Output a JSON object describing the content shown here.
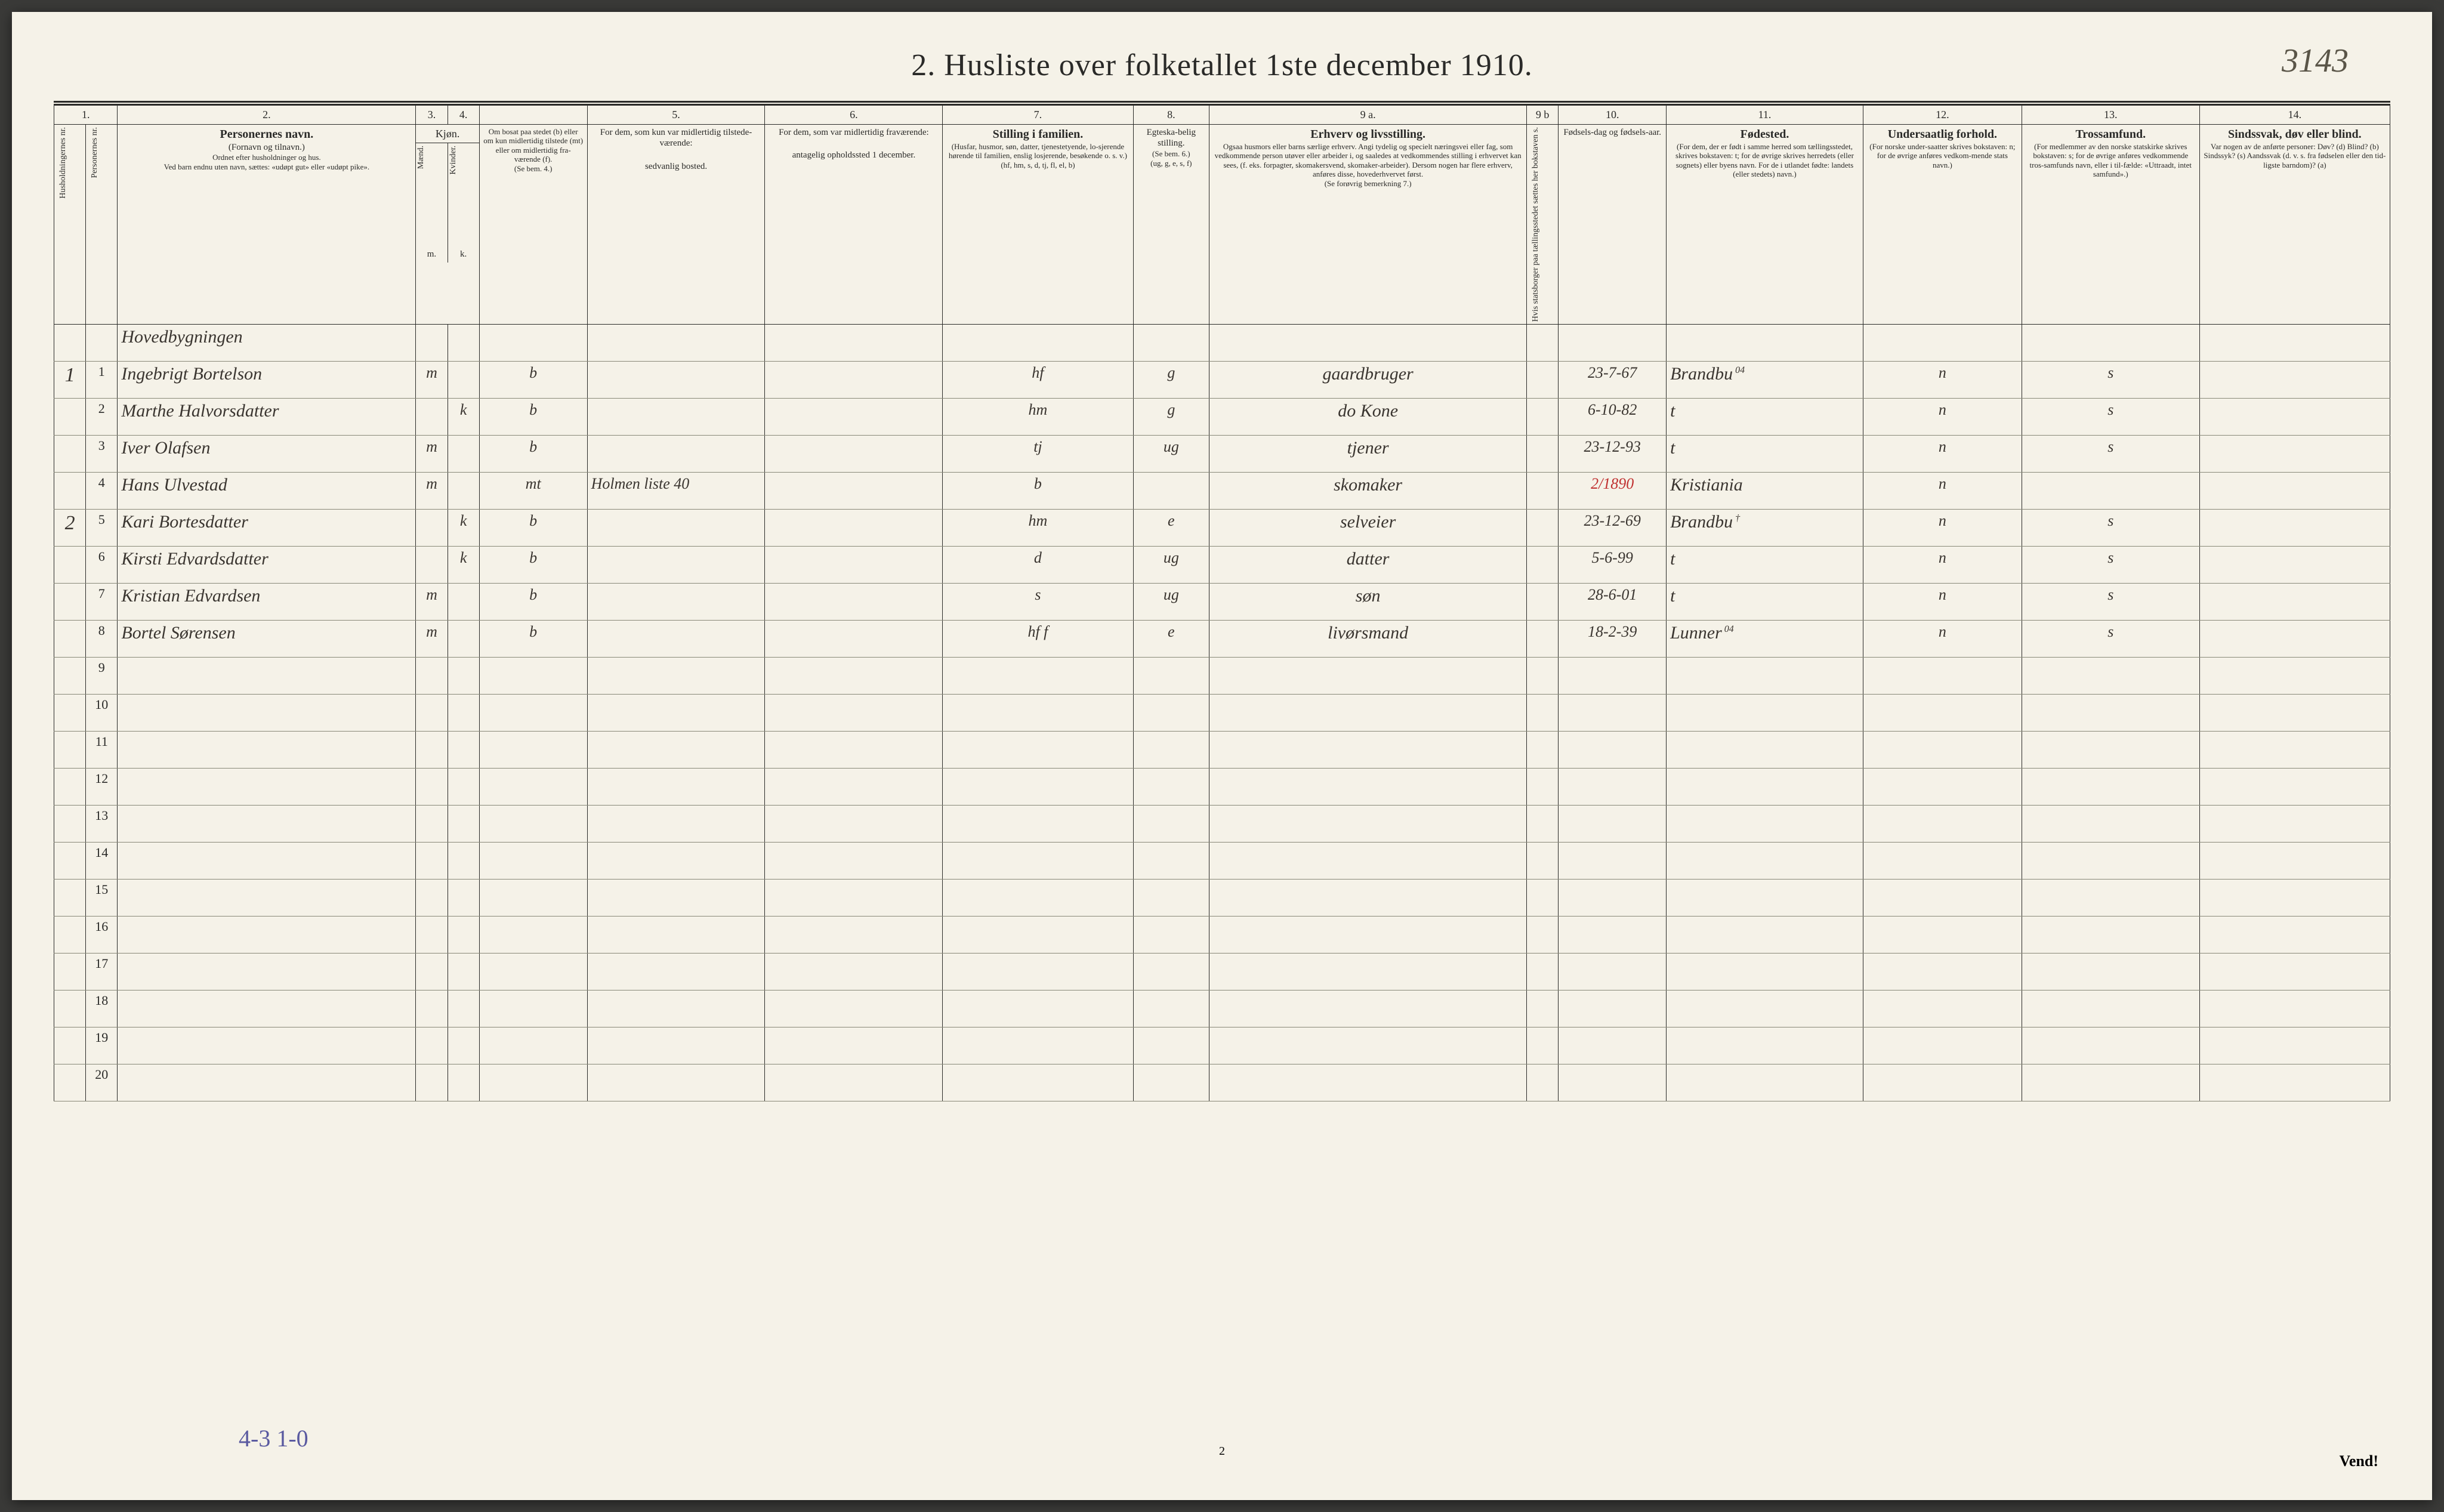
{
  "corner_note": "3143",
  "title": "2.  Husliste over folketallet 1ste december 1910.",
  "col_numbers": [
    "1.",
    "2.",
    "3.",
    "4.",
    "5.",
    "6.",
    "7.",
    "8.",
    "9 a.",
    "9 b",
    "10.",
    "11.",
    "12.",
    "13.",
    "14."
  ],
  "headers": {
    "c1a": "Husholdningernes nr.",
    "c1b": "Personernes nr.",
    "c2_title": "Personernes navn.",
    "c2_sub": "(Fornavn og tilnavn.)",
    "c2_note1": "Ordnet efter husholdninger og hus.",
    "c2_note2": "Ved barn endnu uten navn, sættes: «udøpt gut» eller «udøpt pike».",
    "c34_group": "Kjøn.",
    "c3": "Mænd.",
    "c3_sub": "m.",
    "c4": "Kvinder.",
    "c4_sub": "k.",
    "c4b_title": "Om bosat paa stedet (b) eller om kun midlertidig tilstede (mt) eller om midlertidig fra-værende (f).",
    "c4b_note": "(Se bem. 4.)",
    "c5_title": "For dem, som kun var midlertidig tilstede-værende:",
    "c5_sub": "sedvanlig bosted.",
    "c6_title": "For dem, som var midlertidig fraværende:",
    "c6_sub": "antagelig opholdssted 1 december.",
    "c7_title": "Stilling i familien.",
    "c7_sub": "(Husfar, husmor, søn, datter, tjenestetyende, lo-sjerende hørende til familien, enslig losjerende, besøkende o. s. v.)",
    "c7_note": "(hf, hm, s, d, tj, fl, el, b)",
    "c8_title": "Egteska-belig stilling.",
    "c8_sub": "(Se bem. 6.)",
    "c8_note": "(ug, g, e, s, f)",
    "c9a_title": "Erhverv og livsstilling.",
    "c9a_sub": "Ogsaa husmors eller barns særlige erhverv. Angi tydelig og specielt næringsvei eller fag, som vedkommende person utøver eller arbeider i, og saaledes at vedkommendes stilling i erhvervet kan sees, (f. eks. forpagter, skomakersvend, skomaker-arbeider). Dersom nogen har flere erhverv, anføres disse, hovederhvervet først.",
    "c9a_note": "(Se forøvrig bemerkning 7.)",
    "c9b": "Hvis statsborger paa tællingsstedet sættes her bokstaven s.",
    "c10_title": "Fødsels-dag og fødsels-aar.",
    "c11_title": "Fødested.",
    "c11_sub": "(For dem, der er født i samme herred som tællingsstedet, skrives bokstaven: t; for de øvrige skrives herredets (eller sognets) eller byens navn. For de i utlandet fødte: landets (eller stedets) navn.)",
    "c12_title": "Undersaatlig forhold.",
    "c12_sub": "(For norske under-saatter skrives bokstaven: n; for de øvrige anføres vedkom-mende stats navn.)",
    "c13_title": "Trossamfund.",
    "c13_sub": "(For medlemmer av den norske statskirke skrives bokstaven: s; for de øvrige anføres vedkommende tros-samfunds navn, eller i til-fælde: «Uttraadt, intet samfund».)",
    "c14_title": "Sindssvak, døv eller blind.",
    "c14_sub": "Var nogen av de anførte personer: Døv? (d) Blind? (b) Sindssyk? (s) Aandssvak (d. v. s. fra fødselen eller den tid-ligste barndom)? (a)"
  },
  "section_label": "Hovedbygningen",
  "rows": [
    {
      "hh": "1",
      "pn": "1",
      "name": "Ingebrigt Bortelson",
      "sex": "m",
      "res": "b",
      "c5": "",
      "c6": "",
      "fam": "hf",
      "mar": "g",
      "occ": "gaardbruger",
      "dob": "23-7-67",
      "birthplace": "Brandbu",
      "nat": "n",
      "rel": "s",
      "c14": "",
      "bp_sup": "04"
    },
    {
      "hh": "",
      "pn": "2",
      "name": "Marthe Halvorsdatter",
      "sex": "k",
      "res": "b",
      "c5": "",
      "c6": "",
      "fam": "hm",
      "mar": "g",
      "occ": "do Kone",
      "dob": "6-10-82",
      "birthplace": "t",
      "nat": "n",
      "rel": "s",
      "c14": ""
    },
    {
      "hh": "",
      "pn": "3",
      "name": "Iver Olafsen",
      "sex": "m",
      "res": "b",
      "c5": "",
      "c6": "",
      "fam": "tj",
      "mar": "ug",
      "occ": "tjener",
      "dob": "23-12-93",
      "birthplace": "t",
      "nat": "n",
      "rel": "s",
      "c14": ""
    },
    {
      "hh": "",
      "pn": "4",
      "name": "Hans Ulvestad",
      "sex": "m",
      "res": "mt",
      "c5": "Holmen  liste 40",
      "c6": "",
      "fam": "b",
      "mar": "",
      "occ": "skomaker",
      "dob": "2/1890",
      "birthplace": "Kristiania",
      "nat": "n",
      "rel": "",
      "c14": "",
      "red_dob": true
    },
    {
      "hh": "2",
      "pn": "5",
      "name": "Kari Bortesdatter",
      "sex": "k",
      "res": "b",
      "c5": "",
      "c6": "",
      "fam": "hm",
      "mar": "e",
      "occ": "selveier",
      "dob": "23-12-69",
      "birthplace": "Brandbu",
      "nat": "n",
      "rel": "s",
      "c14": "",
      "bp_sup": "†"
    },
    {
      "hh": "",
      "pn": "6",
      "name": "Kirsti Edvardsdatter",
      "sex": "k",
      "res": "b",
      "c5": "",
      "c6": "",
      "fam": "d",
      "mar": "ug",
      "occ": "datter",
      "dob": "5-6-99",
      "birthplace": "t",
      "nat": "n",
      "rel": "s",
      "c14": ""
    },
    {
      "hh": "",
      "pn": "7",
      "name": "Kristian Edvardsen",
      "sex": "m",
      "res": "b",
      "c5": "",
      "c6": "",
      "fam": "s",
      "mar": "ug",
      "occ": "søn",
      "dob": "28-6-01",
      "birthplace": "t",
      "nat": "n",
      "rel": "s",
      "c14": ""
    },
    {
      "hh": "",
      "pn": "8",
      "name": "Bortel Sørensen",
      "sex": "m",
      "res": "b",
      "c5": "",
      "c6": "",
      "fam": "hf f",
      "mar": "e",
      "occ": "livørsmand",
      "dob": "18-2-39",
      "birthplace": "Lunner",
      "nat": "n",
      "rel": "s",
      "c14": "",
      "bp_sup": "04"
    }
  ],
  "empty_rows": [
    "9",
    "10",
    "11",
    "12",
    "13",
    "14",
    "15",
    "16",
    "17",
    "18",
    "19",
    "20"
  ],
  "footer_note": "4-3    1-0",
  "page_number": "2",
  "vend": "Vend!"
}
